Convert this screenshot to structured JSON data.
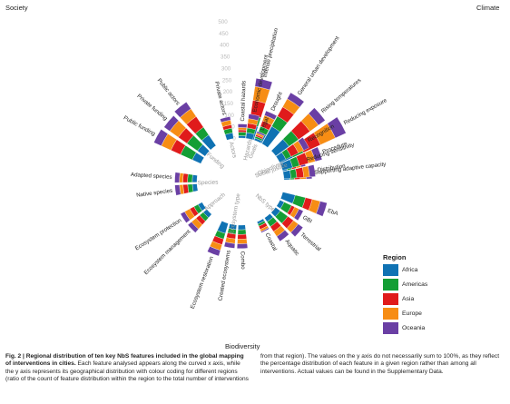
{
  "corners": {
    "society": "Society",
    "climate": "Climate",
    "biodiversity": "Biodiversity"
  },
  "caption": {
    "lead": "Fig. 2 | Regional distribution of ten key NbS features included in the global mapping of interventions in cities.",
    "body": "Each feature analysed appears along the curved x axis, while the y axis represents its geographical distribution with colour coding for different regions (ratio of the count of feature distribution within the region to the total number of interventions from that region). The values on the y axis do not necessarily sum to 100%, as they reflect the percentage distribution of each feature in a given region rather than among all interventions. Actual values can be found in the Supplementary Data."
  },
  "legend_title": "Region",
  "colors": {
    "Africa": "#0f72b3",
    "Americas": "#149e35",
    "Asia": "#e01b1b",
    "Europe": "#f78d14",
    "Oceania": "#6a3fa4"
  },
  "chart_data": {
    "type": "bar",
    "subtype": "circular-stacked",
    "y_ticks": [
      0,
      50,
      100,
      150,
      200,
      250,
      300,
      350,
      400,
      450,
      500
    ],
    "ylim": [
      0,
      500
    ],
    "series_names": [
      "Africa",
      "Americas",
      "Asia",
      "Europe",
      "Oceania"
    ],
    "groups": [
      {
        "name": "Hazards",
        "features": [
          {
            "label": "Coastal hazards",
            "values": [
              10,
              15,
              10,
              10,
              15
            ]
          },
          {
            "label": "Intense precipitation",
            "values": [
              60,
              40,
              65,
              60,
              35
            ]
          },
          {
            "label": "Drought",
            "values": [
              40,
              25,
              25,
              25,
              20
            ]
          }
        ]
      },
      {
        "name": "Objectives",
        "features": [
          {
            "label": "Rising temperatures",
            "values": [
              70,
              50,
              60,
              45,
              35
            ]
          },
          {
            "label": "Reducing exposure",
            "values": [
              60,
              50,
              80,
              70,
              50
            ]
          },
          {
            "label": "Reducing sensitivity",
            "values": [
              20,
              20,
              20,
              20,
              20
            ]
          },
          {
            "label": "Supporting adaptive capacity",
            "values": [
              25,
              20,
              25,
              25,
              25
            ]
          }
        ]
      },
      {
        "name": "NbS type",
        "features": [
          {
            "label": "EbA",
            "values": [
              55,
              45,
              30,
              35,
              30
            ]
          },
          {
            "label": "GBI",
            "values": [
              20,
              35,
              15,
              20,
              20
            ]
          },
          {
            "label": "Terrestrial",
            "values": [
              25,
              40,
              30,
              25,
              25
            ]
          },
          {
            "label": "Aquatic",
            "values": [
              20,
              25,
              25,
              25,
              25
            ]
          },
          {
            "label": "Coastal",
            "values": [
              10,
              10,
              15,
              10,
              5
            ]
          }
        ]
      },
      {
        "name": "Ecosystem type",
        "features": [
          {
            "label": "Combo",
            "values": [
              20,
              20,
              20,
              20,
              20
            ]
          },
          {
            "label": "Created ecosystems",
            "values": [
              20,
              20,
              20,
              20,
              20
            ]
          },
          {
            "label": "Ecosystem restoration",
            "values": [
              45,
              25,
              25,
              25,
              25
            ]
          }
        ]
      },
      {
        "name": "Approach",
        "features": [
          {
            "label": "Ecosystem management",
            "values": [
              20,
              20,
              20,
              25,
              20
            ]
          },
          {
            "label": "Ecosystem protection",
            "values": [
              20,
              20,
              20,
              25,
              20
            ]
          }
        ]
      },
      {
        "name": "Species",
        "features": [
          {
            "label": "Native species",
            "values": [
              20,
              20,
              20,
              15,
              20
            ]
          },
          {
            "label": "Adapted species",
            "values": [
              20,
              20,
              20,
              15,
              20
            ]
          }
        ]
      },
      {
        "name": "Funding",
        "features": [
          {
            "label": "Public funding",
            "values": [
              40,
              55,
              45,
              45,
              35
            ]
          },
          {
            "label": "Private funding",
            "values": [
              40,
              55,
              45,
              45,
              30
            ]
          },
          {
            "label": "Public actors",
            "values": [
              55,
              40,
              55,
              40,
              35
            ]
          }
        ]
      },
      {
        "name": "Actors",
        "features": [
          {
            "label": "Private actors",
            "values": [
              25,
              20,
              15,
              20,
              15
            ]
          }
        ]
      },
      {
        "name": "Goals",
        "features": [
          {
            "label": "Economic development",
            "values": [
              25,
              20,
              20,
              20,
              20
            ]
          },
          {
            "label": "Legal",
            "values": [
              10,
              8,
              7,
              8,
              7
            ]
          },
          {
            "label": "General urban development",
            "values": [
              85,
              50,
              45,
              40,
              30
            ]
          }
        ]
      },
      {
        "name": "Social justice",
        "features": [
          {
            "label": "Recognition",
            "values": [
              30,
              25,
              35,
              25,
              25
            ]
          },
          {
            "label": "Procedure",
            "values": [
              45,
              30,
              40,
              30,
              30
            ]
          },
          {
            "label": "Distribution",
            "values": [
              30,
              25,
              30,
              25,
              25
            ]
          }
        ]
      }
    ]
  }
}
